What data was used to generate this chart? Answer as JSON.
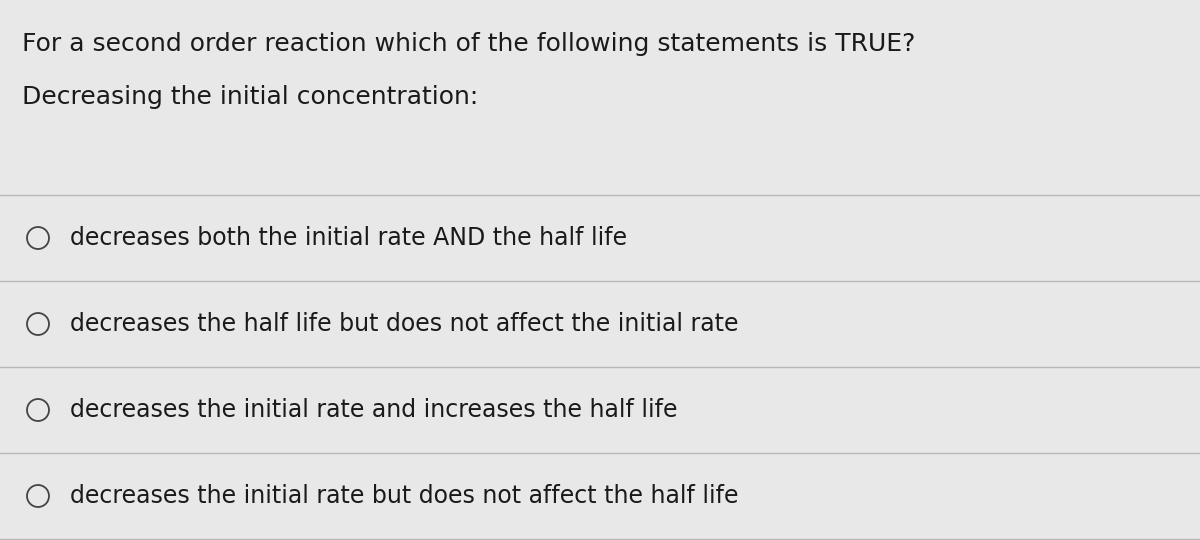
{
  "background_color": "#e8e8e8",
  "question_line1": "For a second order reaction which of the following statements is TRUE?",
  "question_line2": "Decreasing the initial concentration:",
  "options": [
    "decreases both the initial rate AND the half life",
    "decreases the half life but does not affect the initial rate",
    "decreases the initial rate and increases the half life",
    "decreases the initial rate but does not affect the half life"
  ],
  "text_color": "#1a1a1a",
  "line_color": "#b8b8b8",
  "font_size_question": 18,
  "font_size_options": 17,
  "circle_color": "#444444",
  "fig_width": 12.0,
  "fig_height": 5.4,
  "dpi": 100
}
